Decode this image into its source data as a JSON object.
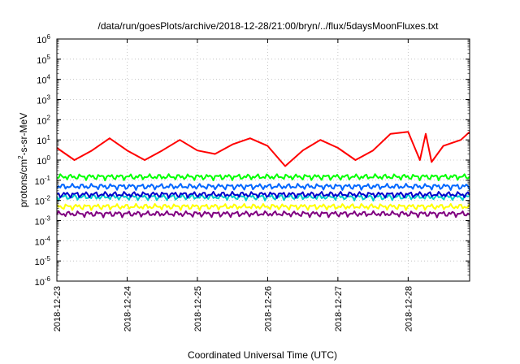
{
  "chart_data": {
    "type": "line",
    "title": "/data/run/goesPlots/archive/2018-12-28/21:00/bryn/../flux/5daysMoonFluxes.txt",
    "xlabel": "Coordinated Universal Time (UTC)",
    "ylabel": "protons/cm²-s-sr-MeV",
    "ylabel_parts": {
      "main": "protons/cm",
      "sup": "2",
      "rest": "-s-sr-MeV"
    },
    "y_scale": "log",
    "ylim": [
      1e-06,
      1000000.0
    ],
    "y_ticks": [
      {
        "base": "10",
        "exp": "-6",
        "value": 1e-06
      },
      {
        "base": "10",
        "exp": "-5",
        "value": 1e-05
      },
      {
        "base": "10",
        "exp": "-4",
        "value": 0.0001
      },
      {
        "base": "10",
        "exp": "-3",
        "value": 0.001
      },
      {
        "base": "10",
        "exp": "-2",
        "value": 0.01
      },
      {
        "base": "10",
        "exp": "-1",
        "value": 0.1
      },
      {
        "base": "10",
        "exp": "0",
        "value": 1
      },
      {
        "base": "10",
        "exp": "1",
        "value": 10
      },
      {
        "base": "10",
        "exp": "2",
        "value": 100
      },
      {
        "base": "10",
        "exp": "3",
        "value": 1000
      },
      {
        "base": "10",
        "exp": "4",
        "value": 10000
      },
      {
        "base": "10",
        "exp": "5",
        "value": 100000
      },
      {
        "base": "10",
        "exp": "6",
        "value": 1000000
      }
    ],
    "xlim": [
      "2018-12-23",
      "2018-12-28T21:00"
    ],
    "x_ticks": [
      "2018-12-23",
      "2018-12-24",
      "2018-12-25",
      "2018-12-26",
      "2018-12-27",
      "2018-12-28"
    ],
    "grid": true,
    "series": [
      {
        "color": "#ff0000",
        "x": [
          "2018-12-23T00:00",
          "2018-12-23T06:00",
          "2018-12-23T12:00",
          "2018-12-23T18:00",
          "2018-12-24T00:00",
          "2018-12-24T06:00",
          "2018-12-24T12:00",
          "2018-12-24T18:00",
          "2018-12-25T00:00",
          "2018-12-25T06:00",
          "2018-12-25T12:00",
          "2018-12-25T18:00",
          "2018-12-26T00:00",
          "2018-12-26T06:00",
          "2018-12-26T12:00",
          "2018-12-26T18:00",
          "2018-12-27T00:00",
          "2018-12-27T06:00",
          "2018-12-27T12:00",
          "2018-12-27T18:00",
          "2018-12-28T00:00",
          "2018-12-28T04:00",
          "2018-12-28T06:00",
          "2018-12-28T08:00",
          "2018-12-28T12:00",
          "2018-12-28T18:00",
          "2018-12-28T21:00"
        ],
        "values": [
          4,
          1,
          3,
          12,
          3,
          1,
          3,
          10,
          3,
          2,
          6,
          12,
          5,
          0.5,
          3,
          10,
          4,
          1,
          3,
          20,
          25,
          1,
          20,
          0.8,
          5,
          10,
          25
        ]
      },
      {
        "color": "#00ff00",
        "x": [
          "2018-12-23T00:00",
          "2018-12-28T21:00"
        ],
        "values": [
          0.15,
          0.15
        ]
      },
      {
        "color": "#0066ff",
        "x": [
          "2018-12-23T00:00",
          "2018-12-28T21:00"
        ],
        "values": [
          0.05,
          0.05
        ]
      },
      {
        "color": "#00cccc",
        "x": [
          "2018-12-23T00:00",
          "2018-12-28T21:00"
        ],
        "values": [
          0.015,
          0.015
        ]
      },
      {
        "color": "#0000cc",
        "x": [
          "2018-12-23T00:00",
          "2018-12-28T21:00"
        ],
        "values": [
          0.02,
          0.02
        ]
      },
      {
        "color": "#ffff00",
        "x": [
          "2018-12-23T00:00",
          "2018-12-28T21:00"
        ],
        "values": [
          0.005,
          0.005
        ]
      },
      {
        "color": "#800080",
        "x": [
          "2018-12-23T00:00",
          "2018-12-28T21:00"
        ],
        "values": [
          0.0022,
          0.0022
        ]
      }
    ]
  }
}
